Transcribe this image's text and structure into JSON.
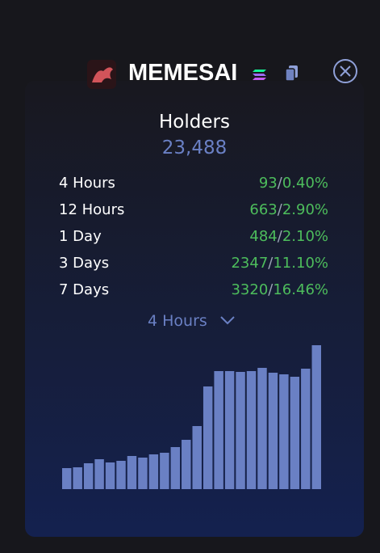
{
  "header": {
    "title": "MEMESAI"
  },
  "holders": {
    "label": "Holders",
    "value": "23,488"
  },
  "separator": "/",
  "rows": [
    {
      "period": "4 Hours",
      "count": 93,
      "percent": "0.40%"
    },
    {
      "period": "12 Hours",
      "count": 663,
      "percent": "2.90%"
    },
    {
      "period": "1 Day",
      "count": 484,
      "percent": "2.10%"
    },
    {
      "period": "3 Days",
      "count": 2347,
      "percent": "11.10%"
    },
    {
      "period": "7 Days",
      "count": 3320,
      "percent": "16.46%"
    }
  ],
  "dropdown": {
    "label": "4 Hours"
  },
  "chart_data": {
    "type": "bar",
    "color": "#6a80c4",
    "values": [
      26,
      27,
      32,
      37,
      33,
      35,
      41,
      39,
      43,
      45,
      52,
      61,
      78,
      127,
      146,
      146,
      145,
      146,
      150,
      144,
      142,
      139,
      149,
      178
    ]
  }
}
